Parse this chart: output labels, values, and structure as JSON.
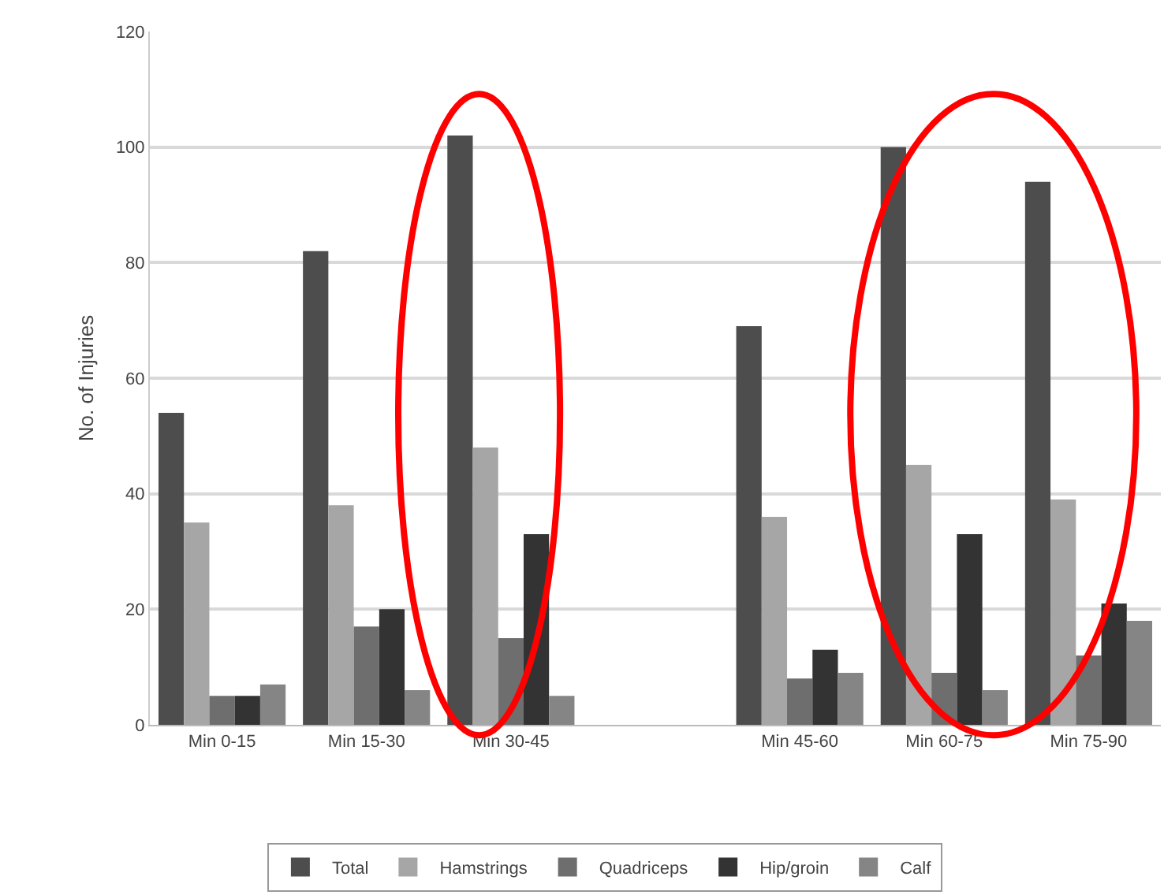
{
  "chart_data": {
    "type": "bar",
    "ylabel": "No. of Injuries",
    "categories": [
      "Min 0-15",
      "Min 15-30",
      "Min 30-45",
      null,
      "Min 45-60",
      "Min 60-75",
      "Min 75-90"
    ],
    "series": [
      {
        "name": "Total",
        "color": "#4d4d4d",
        "values": [
          54,
          82,
          102,
          null,
          69,
          100,
          94
        ]
      },
      {
        "name": "Hamstrings",
        "color": "#a6a6a6",
        "values": [
          35,
          38,
          48,
          null,
          36,
          45,
          39
        ]
      },
      {
        "name": "Quadriceps",
        "color": "#6e6e6e",
        "values": [
          5,
          17,
          15,
          null,
          8,
          9,
          12
        ]
      },
      {
        "name": "Hip/groin",
        "color": "#333333",
        "values": [
          5,
          20,
          33,
          null,
          13,
          33,
          21
        ]
      },
      {
        "name": "Calf",
        "color": "#858585",
        "values": [
          7,
          6,
          5,
          null,
          9,
          6,
          18
        ]
      }
    ],
    "ylim": [
      0,
      120
    ],
    "yticks": [
      0,
      20,
      40,
      60,
      80,
      100,
      120
    ],
    "grid": "y",
    "legend": "bottom"
  }
}
